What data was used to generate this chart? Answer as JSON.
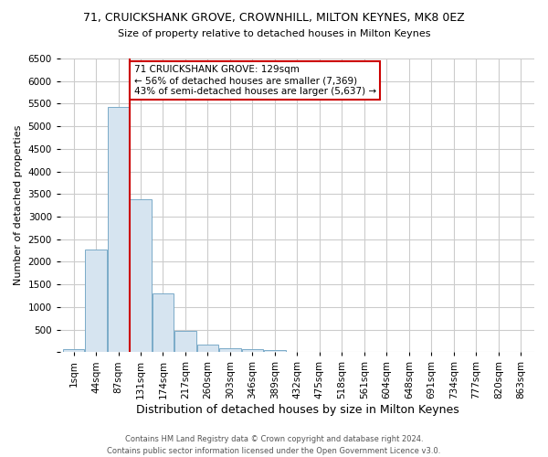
{
  "title": "71, CRUICKSHANK GROVE, CROWNHILL, MILTON KEYNES, MK8 0EZ",
  "subtitle": "Size of property relative to detached houses in Milton Keynes",
  "xlabel": "Distribution of detached houses by size in Milton Keynes",
  "ylabel": "Number of detached properties",
  "footer": "Contains HM Land Registry data © Crown copyright and database right 2024.\nContains public sector information licensed under the Open Government Licence v3.0.",
  "bin_labels": [
    "1sqm",
    "44sqm",
    "87sqm",
    "131sqm",
    "174sqm",
    "217sqm",
    "260sqm",
    "303sqm",
    "346sqm",
    "389sqm",
    "432sqm",
    "475sqm",
    "518sqm",
    "561sqm",
    "604sqm",
    "648sqm",
    "691sqm",
    "734sqm",
    "777sqm",
    "820sqm",
    "863sqm"
  ],
  "bar_values": [
    75,
    2270,
    5430,
    3380,
    1310,
    480,
    165,
    80,
    65,
    40,
    0,
    0,
    0,
    0,
    0,
    0,
    0,
    0,
    0,
    0,
    0
  ],
  "bar_color": "#d6e4f0",
  "bar_edge_color": "#7aaac8",
  "property_line_color": "#cc0000",
  "annotation_text": "71 CRUICKSHANK GROVE: 129sqm\n← 56% of detached houses are smaller (7,369)\n43% of semi-detached houses are larger (5,637) →",
  "annotation_box_color": "#cc0000",
  "ylim": [
    0,
    6500
  ],
  "yticks": [
    0,
    500,
    1000,
    1500,
    2000,
    2500,
    3000,
    3500,
    4000,
    4500,
    5000,
    5500,
    6000,
    6500
  ],
  "grid_color": "#cccccc",
  "bg_color": "#ffffff",
  "title_fontsize": 9,
  "subtitle_fontsize": 8,
  "ylabel_fontsize": 8,
  "xlabel_fontsize": 9,
  "tick_fontsize": 7.5,
  "footer_fontsize": 6
}
